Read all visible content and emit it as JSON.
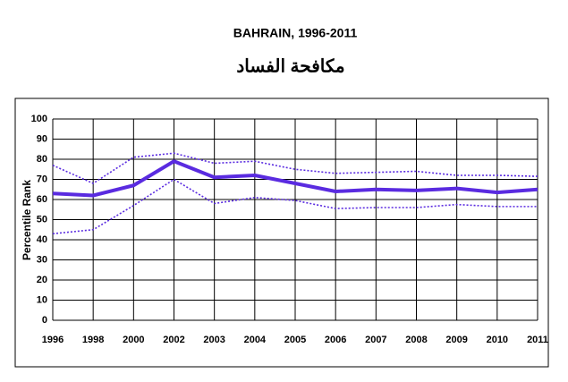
{
  "chart_data": {
    "type": "line",
    "title": "BAHRAIN, 1996-2011",
    "subtitle": "مكافحة الفساد",
    "y_label": "Percentile Rank",
    "categories": [
      "1996",
      "1998",
      "2000",
      "2002",
      "2003",
      "2004",
      "2005",
      "2006",
      "2007",
      "2008",
      "2009",
      "2010",
      "2011"
    ],
    "series": [
      {
        "color": "#5a2be0",
        "style": "solid",
        "values": [
          63,
          62,
          67,
          79,
          71,
          72,
          68,
          64,
          65,
          64.5,
          65.5,
          63.5,
          65
        ]
      },
      {
        "color": "#5a2be0",
        "style": "dotted",
        "values": [
          77,
          68,
          81,
          83,
          78,
          79,
          75,
          73,
          73.5,
          74,
          72,
          72,
          71.5
        ]
      },
      {
        "color": "#5a2be0",
        "style": "dotted",
        "values": [
          43,
          45,
          57,
          70,
          58,
          61,
          59.5,
          55.5,
          56,
          56,
          57.5,
          56.5,
          56.5
        ]
      }
    ],
    "ylim": [
      0,
      100
    ],
    "yticks": [
      0,
      10,
      20,
      30,
      40,
      50,
      60,
      70,
      80,
      90,
      100
    ],
    "grid": true
  }
}
